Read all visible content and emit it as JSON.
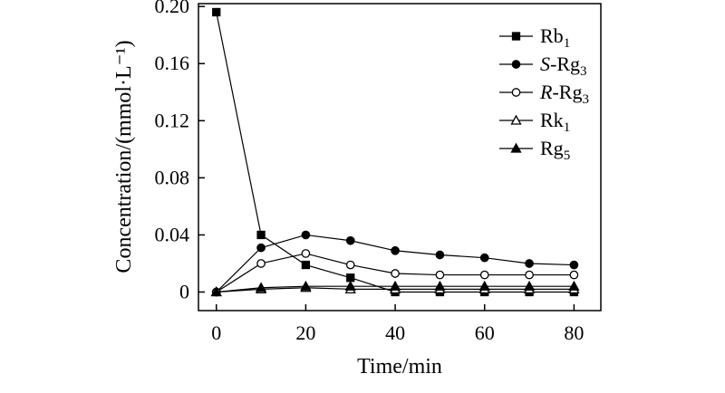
{
  "chart_data": {
    "type": "line",
    "title": "",
    "xlabel": "Time/min",
    "ylabel": "Concentration/(mmol·L⁻¹)",
    "xlim": [
      -4,
      86
    ],
    "ylim": [
      -0.013,
      0.202
    ],
    "xticks": [
      0,
      20,
      40,
      60,
      80
    ],
    "xtick_labels": [
      "0",
      "20",
      "40",
      "60",
      "80"
    ],
    "yticks": [
      0,
      0.04,
      0.08,
      0.12,
      0.16,
      0.2
    ],
    "ytick_labels": [
      "0",
      "0.04",
      "0.08",
      "0.12",
      "0.16",
      "0.20"
    ],
    "legend_position": "top-right",
    "x": [
      0,
      10,
      20,
      30,
      40,
      50,
      60,
      70,
      80
    ],
    "series": [
      {
        "name": "Rb1",
        "label_main": "Rb",
        "label_italic": "",
        "label_rest": "",
        "label_sub": "1",
        "marker": "square-filled",
        "values": [
          0.196,
          0.04,
          0.019,
          0.01,
          0.0,
          0.0,
          0.0,
          0.0,
          0.0
        ]
      },
      {
        "name": "S-Rg3",
        "label_main": "",
        "label_italic": "S",
        "label_rest": "-Rg",
        "label_sub": "3",
        "marker": "circle-filled",
        "values": [
          0.0,
          0.031,
          0.04,
          0.036,
          0.029,
          0.026,
          0.024,
          0.02,
          0.019
        ]
      },
      {
        "name": "R-Rg3",
        "label_main": "",
        "label_italic": "R",
        "label_rest": "-Rg",
        "label_sub": "3",
        "marker": "circle-open",
        "values": [
          0.0,
          0.02,
          0.027,
          0.019,
          0.013,
          0.012,
          0.012,
          0.012,
          0.012
        ]
      },
      {
        "name": "Rk1",
        "label_main": "Rk",
        "label_italic": "",
        "label_rest": "",
        "label_sub": "1",
        "marker": "triangle-open",
        "values": [
          0.0,
          0.002,
          0.003,
          0.002,
          0.002,
          0.002,
          0.002,
          0.002,
          0.002
        ]
      },
      {
        "name": "Rg5",
        "label_main": "Rg",
        "label_italic": "",
        "label_rest": "",
        "label_sub": "5",
        "marker": "triangle-filled",
        "values": [
          0.0,
          0.003,
          0.004,
          0.004,
          0.004,
          0.004,
          0.004,
          0.004,
          0.004
        ]
      }
    ]
  },
  "colors": {
    "line": "#000000",
    "background": "#ffffff"
  }
}
